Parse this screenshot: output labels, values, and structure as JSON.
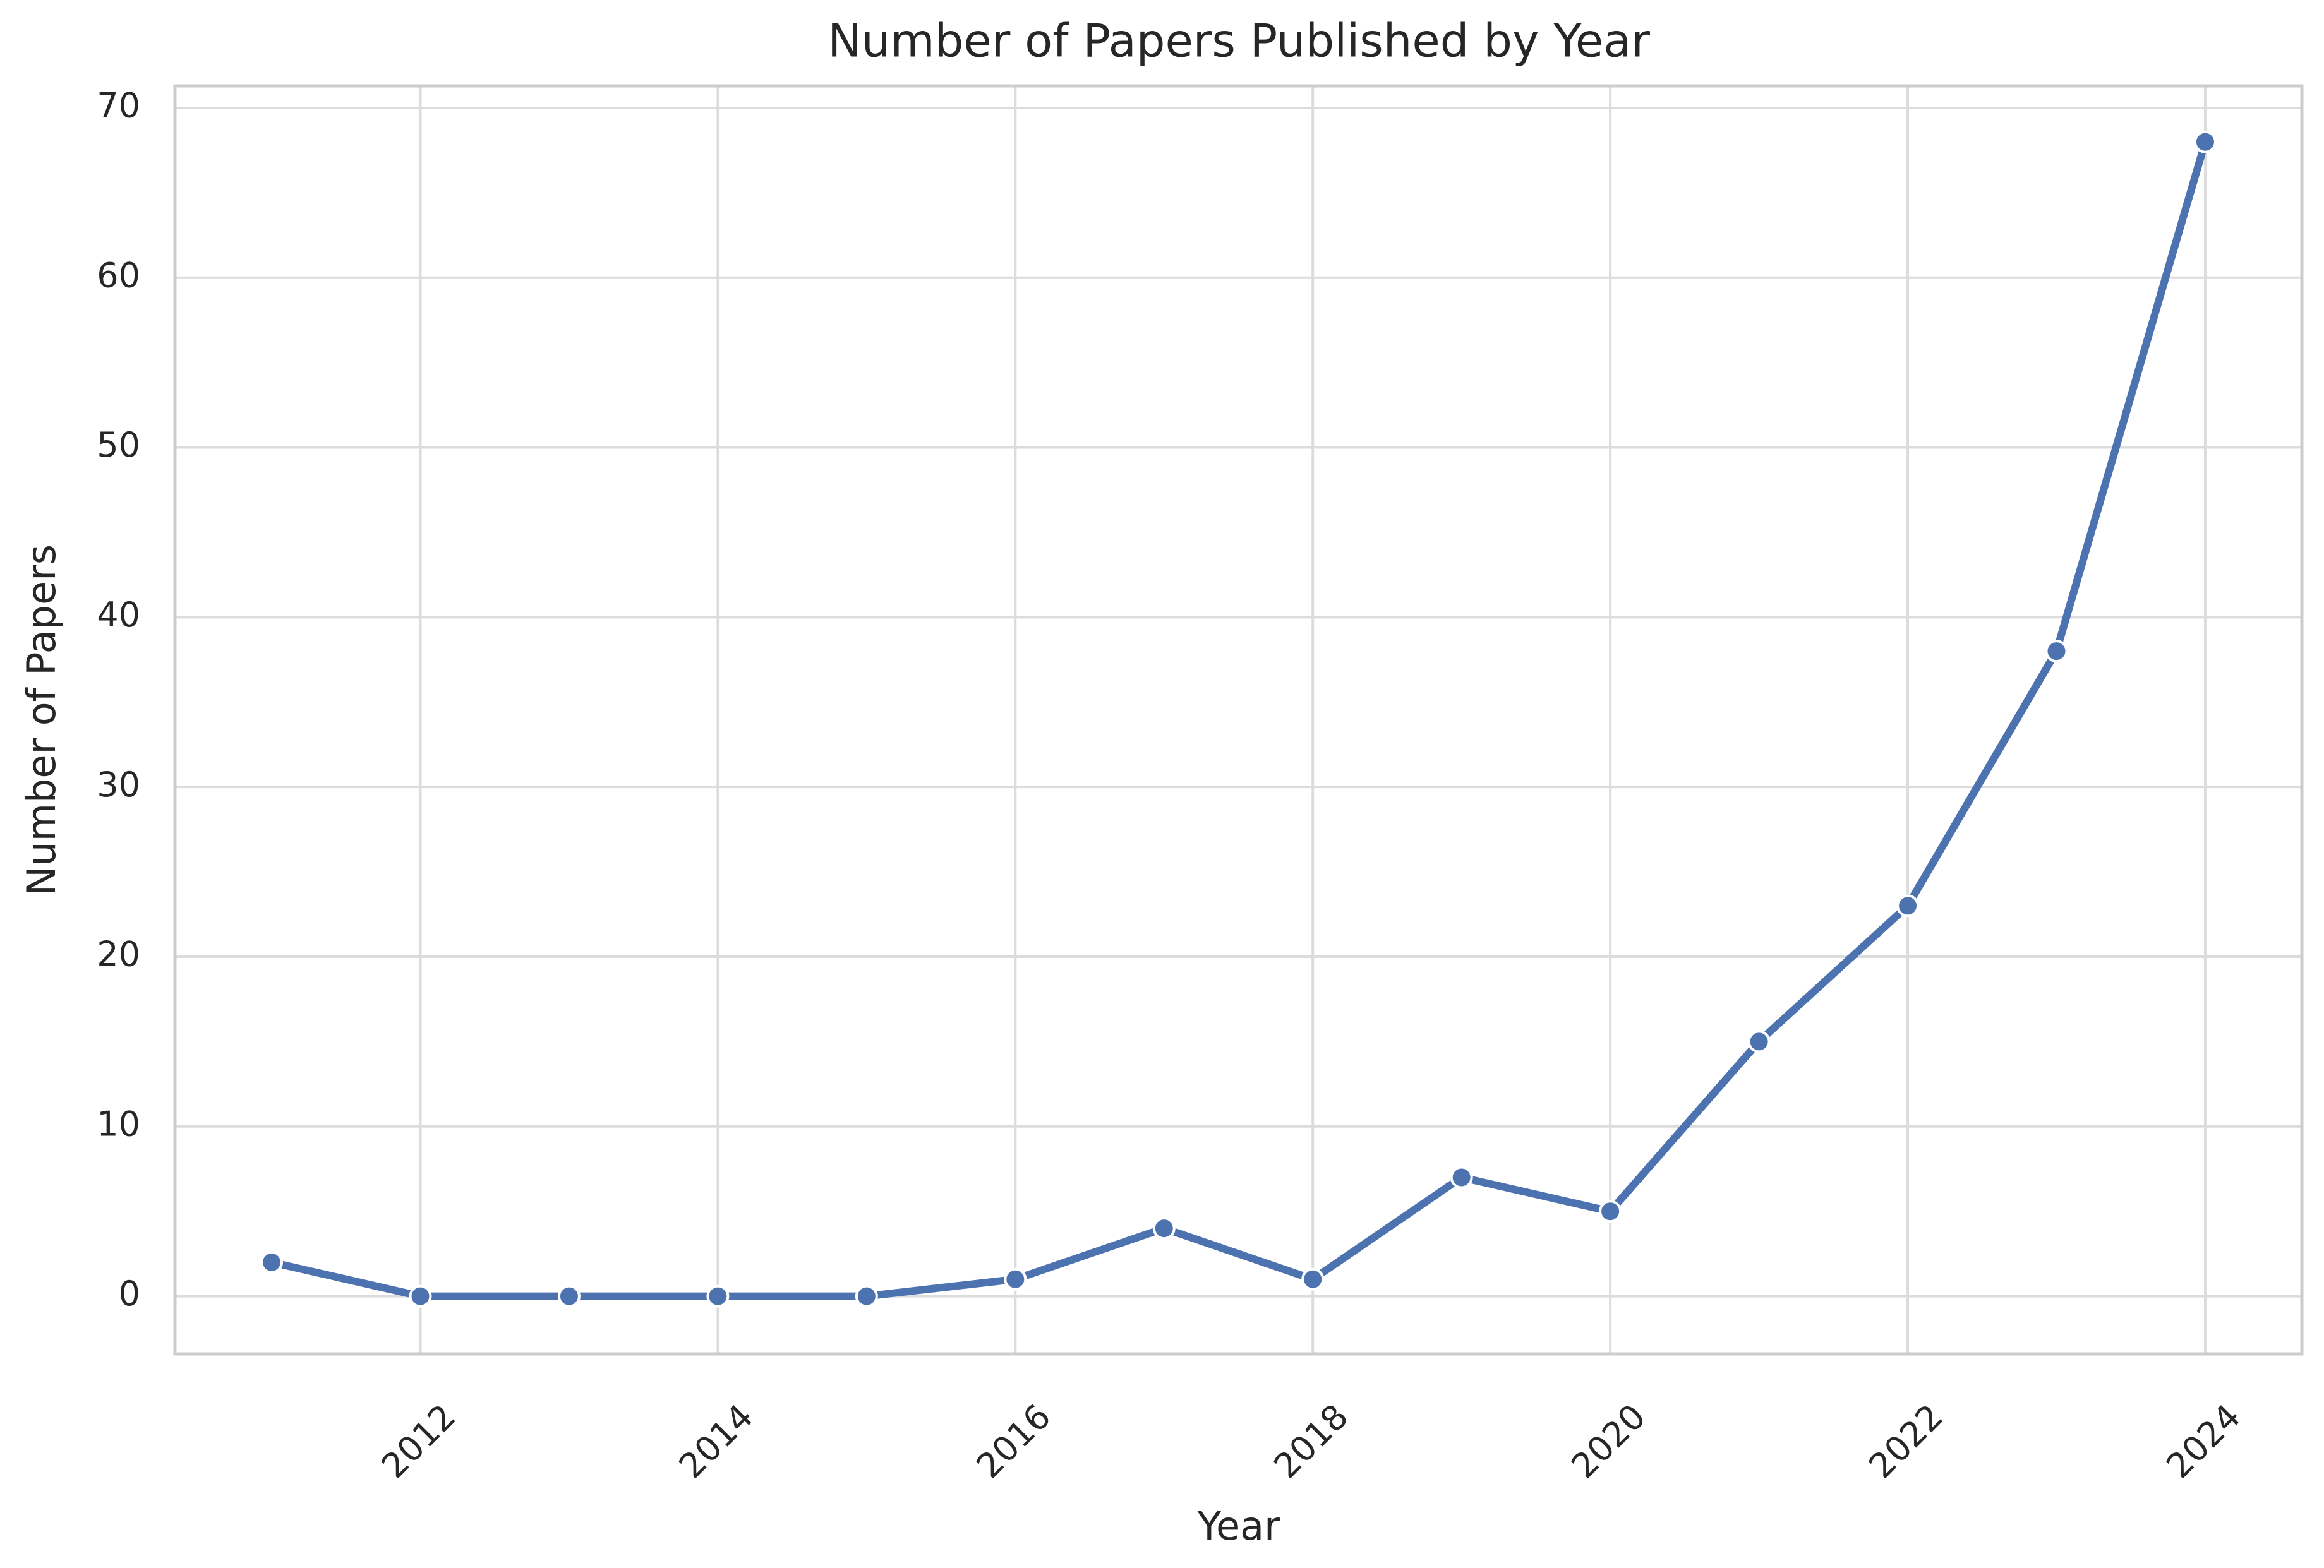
{
  "chart_data": {
    "type": "line",
    "title": "Number of Papers Published by Year",
    "x_label": "Year",
    "y_label": "Number of Papers",
    "x": [
      2011,
      2012,
      2013,
      2014,
      2015,
      2016,
      2017,
      2018,
      2019,
      2020,
      2021,
      2022,
      2023,
      2024
    ],
    "series": [
      {
        "name": "Papers",
        "color": "#4c72b0",
        "values": [
          2,
          0,
          0,
          0,
          0,
          1,
          4,
          1,
          7,
          5,
          15,
          23,
          38,
          68
        ]
      }
    ],
    "xlim": [
      2010.35,
      2024.65
    ],
    "xticks": [
      2012,
      2014,
      2016,
      2018,
      2020,
      2022,
      2024
    ],
    "ylim": [
      -3.4,
      71.3
    ],
    "yticks": [
      0,
      10,
      20,
      30,
      40,
      50,
      60,
      70
    ],
    "grid": true
  }
}
